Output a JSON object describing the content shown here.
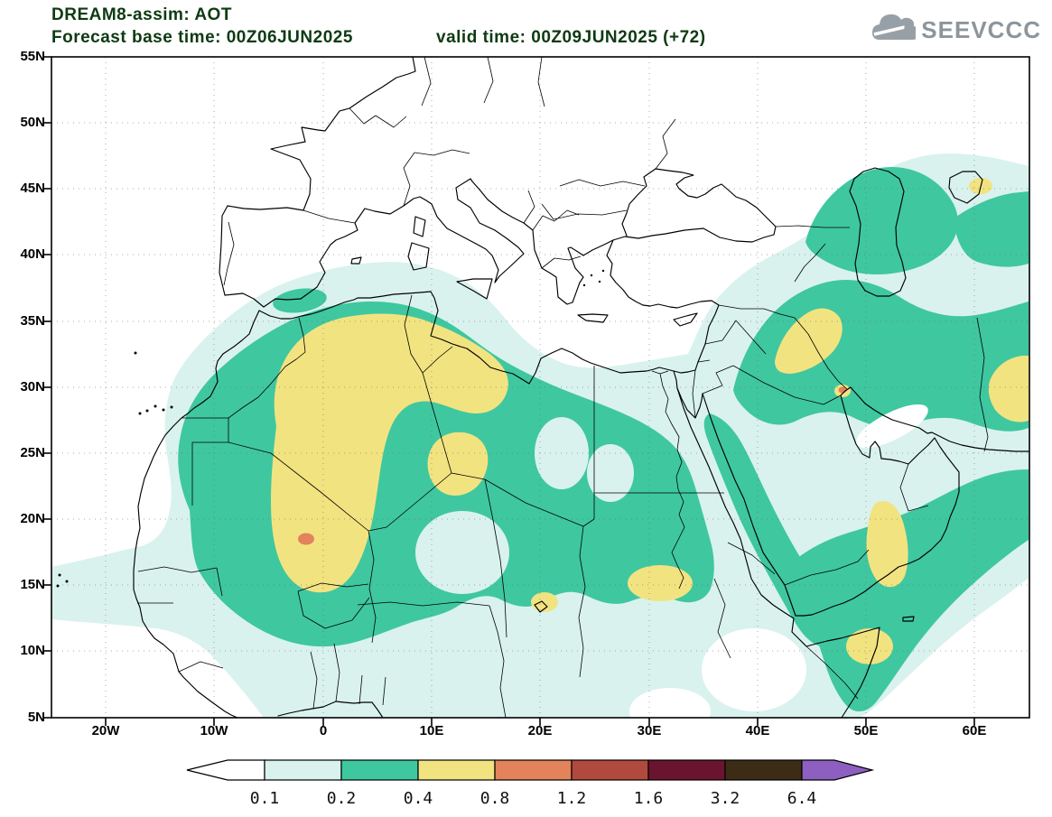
{
  "header": {
    "title": "DREAM8-assim: AOT",
    "forecast_base": "Forecast base time: 00Z06JUN2025",
    "valid_time": "valid time: 00Z09JUN2025 (+72)",
    "logo_text": "SEEVCCC"
  },
  "chart_data": {
    "type": "heatmap",
    "title": "DREAM8-assim: AOT",
    "variable": "AOT",
    "model": "DREAM8-assim",
    "forecast_base_time": "00Z06JUN2025",
    "valid_time": "00Z09JUN2025",
    "forecast_lead": "+72",
    "lat_ticks": [
      "55N",
      "50N",
      "45N",
      "40N",
      "35N",
      "30N",
      "25N",
      "20N",
      "15N",
      "10N",
      "5N"
    ],
    "lon_ticks": [
      "20W",
      "10W",
      "0",
      "10E",
      "20E",
      "30E",
      "40E",
      "50E",
      "60E"
    ],
    "legend": {
      "levels": [
        "0.1",
        "0.2",
        "0.4",
        "0.8",
        "1.2",
        "1.6",
        "3.2",
        "6.4"
      ],
      "segment_colors": [
        "#ffffff",
        "#d9f2ee",
        "#3fc7a0",
        "#f2e381",
        "#e2835c",
        "#b04a3e",
        "#6b1430",
        "#3d2c15",
        "#8d5fc0"
      ],
      "description_colors": {
        "below_first_level": "#ffffff",
        "level_0.1_0.2": "#d9f2ee",
        "level_0.2_0.4": "#3fc7a0",
        "level_0.4_0.8": "#f2e381",
        "level_0.8_1.2": "#e2835c",
        "level_1.2_1.6": "#b04a3e",
        "level_1.6_3.2": "#6b1430",
        "level_3.2_6.4": "#3d2c15",
        "above_last_level": "#8d5fc0"
      }
    }
  }
}
